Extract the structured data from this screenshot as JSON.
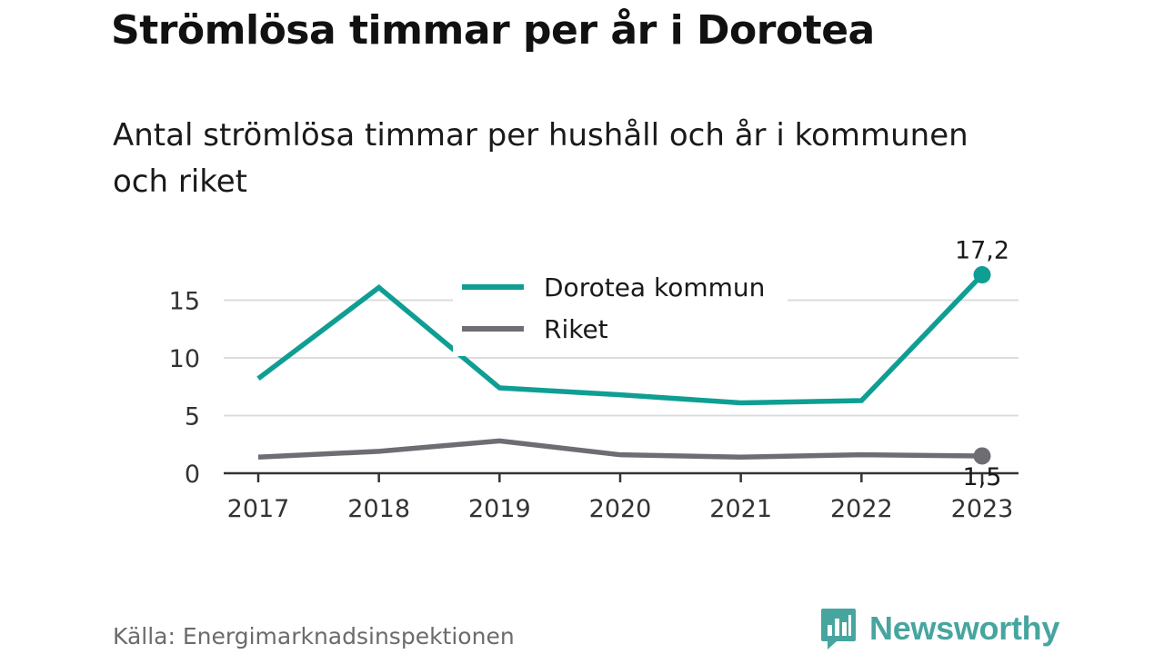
{
  "title": "Strömlösa timmar per år i Dorotea",
  "subtitle": "Antal strömlösa timmar per hushåll och år i kommunen och riket",
  "source": "Källa: Energimarknadsinspektionen",
  "brand": {
    "name": "Newsworthy",
    "icon": "newsworthy-logo-icon",
    "color": "#47a59f"
  },
  "chart_data": {
    "type": "line",
    "x": [
      "2017",
      "2018",
      "2019",
      "2020",
      "2021",
      "2022",
      "2023"
    ],
    "y_ticks": [
      "0",
      "5",
      "10",
      "15"
    ],
    "ylim": [
      0,
      18
    ],
    "grid": true,
    "legend_position": "top-center",
    "series": [
      {
        "name": "Dorotea kommun",
        "values": [
          8.2,
          16.1,
          7.4,
          6.8,
          6.1,
          6.3,
          17.2
        ],
        "color": "#0f9e94",
        "end_label": "17,2"
      },
      {
        "name": "Riket",
        "values": [
          1.4,
          1.9,
          2.8,
          1.6,
          1.4,
          1.6,
          1.5
        ],
        "color": "#6e6d73",
        "end_label": "1,5"
      }
    ]
  }
}
